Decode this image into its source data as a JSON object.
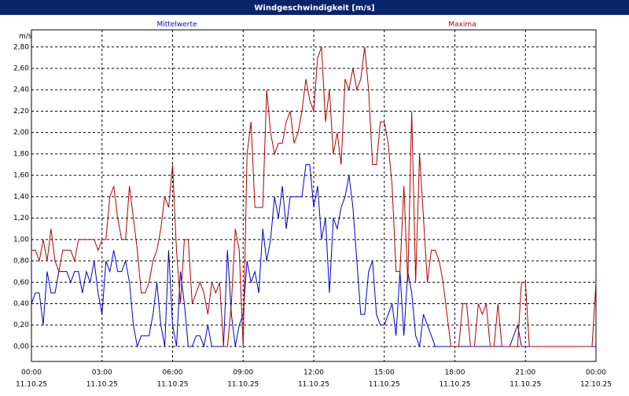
{
  "chart_data": {
    "type": "line",
    "title": "Windgeschwindigkeit [m/s]",
    "y_label": "m/s",
    "x": [
      0,
      10,
      20,
      30,
      40,
      50,
      60,
      70,
      80,
      90,
      100,
      110,
      120,
      130,
      140,
      150,
      160,
      170,
      180,
      190,
      200,
      210,
      220,
      230,
      240,
      250,
      260,
      270,
      280,
      290,
      300,
      310,
      320,
      330,
      340,
      350,
      360,
      370,
      380,
      390,
      400,
      410,
      420,
      430,
      440,
      450,
      460,
      470,
      480,
      490,
      500,
      510,
      520,
      530,
      540,
      550,
      560,
      570,
      580,
      590,
      600,
      610,
      620,
      630,
      640,
      650,
      660,
      670,
      680,
      690,
      700,
      710,
      720,
      730,
      740,
      750,
      760,
      770,
      780,
      790,
      800,
      810,
      820,
      830,
      840,
      850,
      860,
      870,
      880,
      890,
      900,
      910,
      920,
      930,
      940,
      950,
      960,
      970,
      980,
      990,
      1000,
      1010,
      1020,
      1030,
      1040,
      1050,
      1060,
      1070,
      1080,
      1090,
      1100,
      1110,
      1120,
      1130,
      1140,
      1150,
      1160,
      1170,
      1180,
      1190,
      1200,
      1210,
      1220,
      1230,
      1240,
      1250,
      1260,
      1270,
      1280,
      1290,
      1300,
      1310,
      1320,
      1330,
      1340,
      1350,
      1360,
      1370,
      1380,
      1390,
      1400,
      1410,
      1420,
      1430,
      1440
    ],
    "series": [
      {
        "name": "Mittelwerte",
        "color": "#0000c8",
        "values": [
          0.4,
          0.5,
          0.5,
          0.2,
          0.7,
          0.5,
          0.5,
          0.7,
          0.7,
          0.7,
          0.6,
          0.7,
          0.7,
          0.5,
          0.7,
          0.6,
          0.8,
          0.5,
          0.3,
          0.8,
          0.7,
          0.9,
          0.7,
          0.7,
          0.8,
          0.6,
          0.2,
          0.0,
          0.1,
          0.1,
          0.1,
          0.3,
          0.6,
          0.2,
          0.0,
          0.9,
          0.2,
          0.0,
          0.7,
          0.4,
          0.0,
          0.0,
          0.1,
          0.1,
          0.0,
          0.2,
          0.0,
          0.0,
          0.0,
          0.0,
          0.9,
          0.3,
          0.0,
          0.2,
          0.3,
          0.8,
          0.6,
          0.7,
          0.5,
          1.1,
          0.8,
          1.0,
          1.4,
          1.2,
          1.5,
          1.1,
          1.4,
          1.4,
          1.4,
          1.4,
          1.7,
          1.7,
          1.3,
          1.5,
          1.0,
          1.2,
          0.5,
          1.2,
          1.1,
          1.3,
          1.4,
          1.6,
          1.3,
          0.8,
          0.3,
          0.3,
          0.7,
          0.8,
          0.3,
          0.2,
          0.2,
          0.3,
          0.4,
          0.1,
          0.7,
          0.1,
          0.7,
          0.5,
          0.1,
          0.0,
          0.3,
          0.2,
          0.1,
          0.0,
          0.0,
          0.0,
          0.0,
          0.0,
          0,
          0,
          0,
          0,
          0,
          0,
          0,
          0,
          0,
          0,
          0,
          0,
          0,
          0,
          0,
          0.1,
          0.2,
          0.0,
          0,
          0,
          0,
          0,
          0,
          0,
          0,
          0,
          0,
          0,
          0,
          0,
          0,
          0,
          0,
          0,
          0,
          0,
          0
        ]
      },
      {
        "name": "Maxima",
        "color": "#b00000",
        "values": [
          0.9,
          0.9,
          0.8,
          1.0,
          0.8,
          1.1,
          0.8,
          0.7,
          0.9,
          0.9,
          0.9,
          0.8,
          1.0,
          1.0,
          1.0,
          1.0,
          1.0,
          0.9,
          1.0,
          1.0,
          1.4,
          1.5,
          1.2,
          1.0,
          1.0,
          1.5,
          1.2,
          0.9,
          0.5,
          0.5,
          0.6,
          0.8,
          0.9,
          1.1,
          1.4,
          1.3,
          1.7,
          0.9,
          0.4,
          1.0,
          1.0,
          0.4,
          0.5,
          0.6,
          0.5,
          0.3,
          0.6,
          0.5,
          0.6,
          0.0,
          0.0,
          0.4,
          1.1,
          0.9,
          0.0,
          1.8,
          2.1,
          1.3,
          1.3,
          1.3,
          2.4,
          2.0,
          1.8,
          1.9,
          1.9,
          2.1,
          2.2,
          1.9,
          2.0,
          2.2,
          2.5,
          2.3,
          2.2,
          2.7,
          2.8,
          2.1,
          2.4,
          1.8,
          2.0,
          1.7,
          2.5,
          2.4,
          2.6,
          2.4,
          2.5,
          2.8,
          2.4,
          1.7,
          1.7,
          2.1,
          2.1,
          1.9,
          1.5,
          0.7,
          0.7,
          1.5,
          0.6,
          2.2,
          0.6,
          1.8,
          1.2,
          0.6,
          0.9,
          0.9,
          0.8,
          0.6,
          0.3,
          0.0,
          0.0,
          0.0,
          0.4,
          0.4,
          0.0,
          0.0,
          0.4,
          0.3,
          0.4,
          0.0,
          0.0,
          0.4,
          0.0,
          0.0,
          0.0,
          0.0,
          0.0,
          0.6,
          0.6,
          0.0,
          0.0,
          0.0,
          0.0,
          0.0,
          0,
          0,
          0,
          0,
          0,
          0,
          0,
          0,
          0,
          0,
          0,
          0,
          0.6
        ]
      }
    ],
    "xlim": [
      0,
      1440
    ],
    "xticks": [
      {
        "value": 0,
        "label": "00:00",
        "date": "11.10.25"
      },
      {
        "value": 180,
        "label": "03:00",
        "date": "11.10.25"
      },
      {
        "value": 360,
        "label": "06:00",
        "date": "11.10.25"
      },
      {
        "value": 540,
        "label": "09:00",
        "date": "11.10.25"
      },
      {
        "value": 720,
        "label": "12:00",
        "date": "11.10.25"
      },
      {
        "value": 900,
        "label": "15:00",
        "date": "11.10.25"
      },
      {
        "value": 1080,
        "label": "18:00",
        "date": "11.10.25"
      },
      {
        "value": 1260,
        "label": "21:00",
        "date": "11.10.25"
      },
      {
        "value": 1440,
        "label": "00:00",
        "date": "12.10.25"
      }
    ],
    "ylim": [
      -0.14,
      2.96
    ],
    "yticks": [
      {
        "value": 0,
        "label": "0,00"
      },
      {
        "value": 0.2,
        "label": "0,20"
      },
      {
        "value": 0.4,
        "label": "0,40"
      },
      {
        "value": 0.6,
        "label": "0,60"
      },
      {
        "value": 0.8,
        "label": "0,80"
      },
      {
        "value": 1.0,
        "label": "1,00"
      },
      {
        "value": 1.2,
        "label": "1,20"
      },
      {
        "value": 1.4,
        "label": "1,40"
      },
      {
        "value": 1.6,
        "label": "1,60"
      },
      {
        "value": 1.8,
        "label": "1,80"
      },
      {
        "value": 2.0,
        "label": "2,00"
      },
      {
        "value": 2.2,
        "label": "2,20"
      },
      {
        "value": 2.4,
        "label": "2,40"
      },
      {
        "value": 2.6,
        "label": "2,60"
      },
      {
        "value": 2.8,
        "label": "2,80"
      }
    ],
    "grid": true
  }
}
